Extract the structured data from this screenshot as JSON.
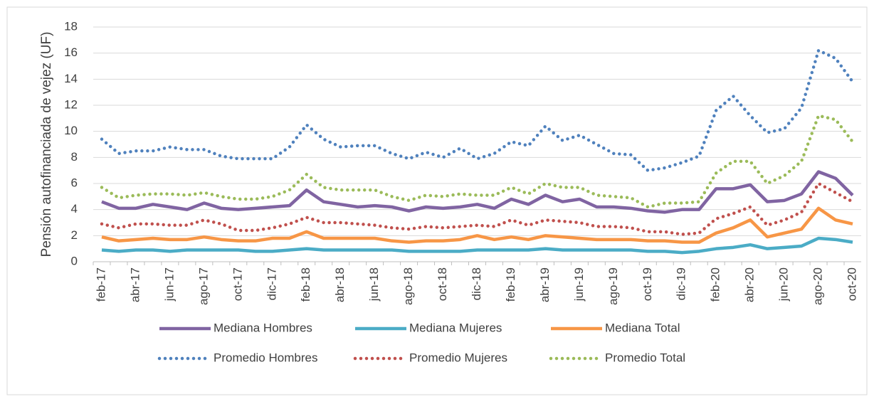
{
  "chart_data": {
    "type": "line",
    "y_label": "Pensión autofinanciada de vejez (UF)",
    "categories": [
      "feb-17",
      null,
      "abr-17",
      null,
      "jun-17",
      null,
      "ago-17",
      null,
      "oct-17",
      null,
      "dic-17",
      null,
      "feb-18",
      null,
      "abr-18",
      null,
      "jun-18",
      null,
      "ago-18",
      null,
      "oct-18",
      null,
      "dic-18",
      null,
      "feb-19",
      null,
      "abr-19",
      null,
      "jun-19",
      null,
      "ago-19",
      null,
      "oct-19",
      null,
      "dic-19",
      null,
      "feb-20",
      null,
      "abr-20",
      null,
      "jun-20",
      null,
      "ago-20",
      null,
      "oct-20"
    ],
    "ylim": [
      0,
      18
    ],
    "yticks": [
      0,
      2,
      4,
      6,
      8,
      10,
      12,
      14,
      16,
      18
    ],
    "grid": true,
    "legend": "bottom",
    "series": [
      {
        "name": "Mediana Hombres",
        "color": "#8064a2",
        "style": "solid",
        "values": [
          4.6,
          4.1,
          4.1,
          4.4,
          4.2,
          4.0,
          4.5,
          4.1,
          4.0,
          4.1,
          4.2,
          4.3,
          5.5,
          4.6,
          4.4,
          4.2,
          4.3,
          4.2,
          3.9,
          4.2,
          4.1,
          4.2,
          4.4,
          4.1,
          4.8,
          4.4,
          5.1,
          4.6,
          4.8,
          4.2,
          4.2,
          4.1,
          3.9,
          3.8,
          4.0,
          4.0,
          5.6,
          5.6,
          5.9,
          4.6,
          4.7,
          5.2,
          6.9,
          6.4,
          5.1
        ]
      },
      {
        "name": "Mediana Mujeres",
        "color": "#4bacc6",
        "style": "solid",
        "values": [
          0.9,
          0.8,
          0.9,
          0.9,
          0.8,
          0.9,
          0.9,
          0.9,
          0.9,
          0.8,
          0.8,
          0.9,
          1.0,
          0.9,
          0.9,
          0.9,
          0.9,
          0.9,
          0.8,
          0.8,
          0.8,
          0.8,
          0.9,
          0.9,
          0.9,
          0.9,
          1.0,
          0.9,
          0.9,
          0.9,
          0.9,
          0.9,
          0.8,
          0.8,
          0.7,
          0.8,
          1.0,
          1.1,
          1.3,
          1.0,
          1.1,
          1.2,
          1.8,
          1.7,
          1.5
        ]
      },
      {
        "name": "Mediana Total",
        "color": "#f79646",
        "style": "solid",
        "values": [
          1.9,
          1.6,
          1.7,
          1.8,
          1.7,
          1.7,
          1.9,
          1.7,
          1.6,
          1.6,
          1.8,
          1.8,
          2.3,
          1.8,
          1.8,
          1.8,
          1.8,
          1.6,
          1.5,
          1.6,
          1.6,
          1.7,
          2.0,
          1.7,
          1.9,
          1.7,
          2.0,
          1.9,
          1.8,
          1.7,
          1.7,
          1.7,
          1.6,
          1.6,
          1.5,
          1.5,
          2.2,
          2.6,
          3.2,
          1.9,
          2.2,
          2.5,
          4.1,
          3.2,
          2.9
        ]
      },
      {
        "name": "Promedio Hombres",
        "color": "#4f81bd",
        "style": "dotted",
        "values": [
          9.4,
          8.3,
          8.5,
          8.5,
          8.8,
          8.6,
          8.6,
          8.1,
          7.9,
          7.9,
          7.9,
          8.8,
          10.5,
          9.4,
          8.8,
          8.9,
          8.9,
          8.3,
          7.9,
          8.4,
          8.0,
          8.7,
          7.9,
          8.3,
          9.2,
          8.9,
          10.4,
          9.3,
          9.7,
          9.0,
          8.3,
          8.2,
          7.0,
          7.2,
          7.6,
          8.1,
          11.6,
          12.7,
          11.2,
          9.9,
          10.2,
          11.8,
          16.2,
          15.6,
          13.8
        ]
      },
      {
        "name": "Promedio Mujeres",
        "color": "#c0504d",
        "style": "dotted",
        "values": [
          2.9,
          2.6,
          2.9,
          2.9,
          2.8,
          2.8,
          3.2,
          2.9,
          2.4,
          2.4,
          2.6,
          2.9,
          3.4,
          3.0,
          3.0,
          2.9,
          2.8,
          2.6,
          2.5,
          2.7,
          2.6,
          2.7,
          2.8,
          2.7,
          3.2,
          2.8,
          3.2,
          3.1,
          3.0,
          2.7,
          2.7,
          2.6,
          2.3,
          2.3,
          2.1,
          2.2,
          3.3,
          3.7,
          4.2,
          2.8,
          3.2,
          3.8,
          6.0,
          5.3,
          4.6
        ]
      },
      {
        "name": "Promedio Total",
        "color": "#9bbb59",
        "style": "dotted",
        "values": [
          5.7,
          4.9,
          5.1,
          5.2,
          5.2,
          5.1,
          5.3,
          5.0,
          4.8,
          4.8,
          5.0,
          5.5,
          6.7,
          5.7,
          5.5,
          5.5,
          5.5,
          5.0,
          4.7,
          5.1,
          5.0,
          5.2,
          5.1,
          5.1,
          5.7,
          5.2,
          6.0,
          5.7,
          5.7,
          5.1,
          5.0,
          4.9,
          4.2,
          4.5,
          4.5,
          4.6,
          6.8,
          7.7,
          7.7,
          6.0,
          6.6,
          7.7,
          11.2,
          10.9,
          9.2
        ]
      }
    ]
  }
}
